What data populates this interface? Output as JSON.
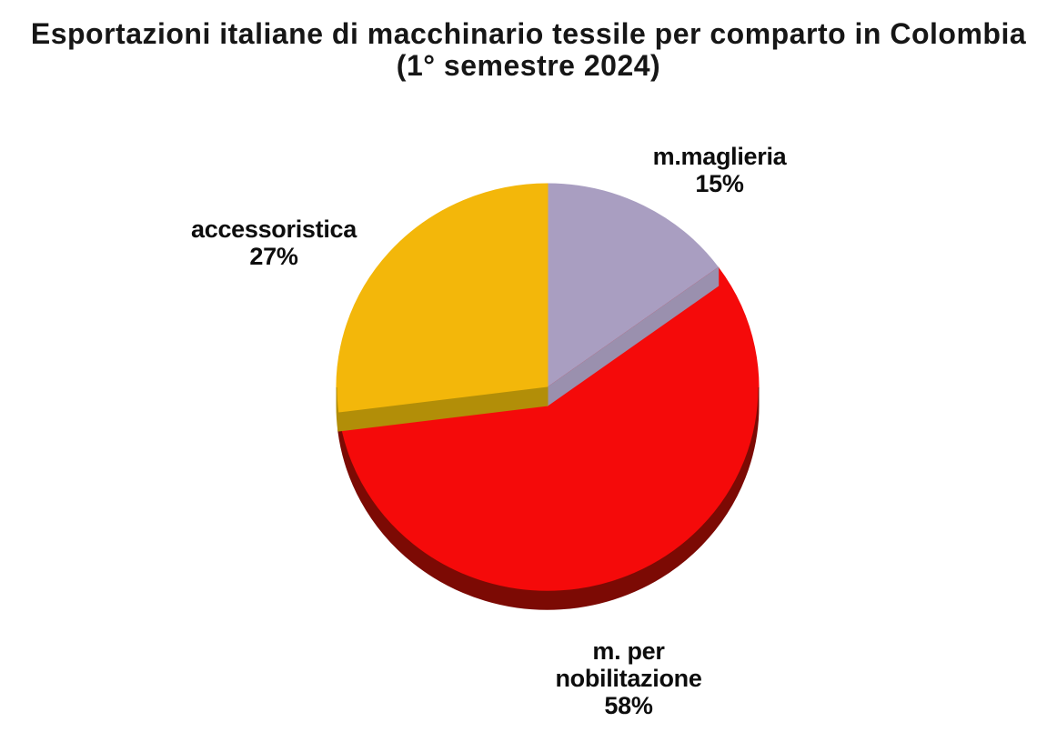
{
  "title": {
    "line1": "Esportazioni italiane di macchinario tessile per comparto in Colombia",
    "line2": "(1° semestre 2024)"
  },
  "chart_data": {
    "type": "pie",
    "style": "3d",
    "title": "Esportazioni italiane di macchinario tessile per comparto in Colombia (1° semestre 2024)",
    "unit": "%",
    "start_angle_deg": 0,
    "direction": "clockwise",
    "legend": "none",
    "slices": [
      {
        "label": "m.maglieria",
        "value": 15,
        "percent_text": "15%",
        "color_top": "#A99EC1",
        "color_side": "#9A90AE",
        "label_lines": [
          "m.maglieria",
          "15%"
        ]
      },
      {
        "label": "m. per nobilitazione",
        "value": 58,
        "percent_text": "58%",
        "color_top": "#F50A0A",
        "color_side": "#7C0A04",
        "label_lines": [
          "m. per",
          "nobilitazione",
          "58%"
        ]
      },
      {
        "label": "accessoristica",
        "value": 27,
        "percent_text": "27%",
        "color_top": "#F3B70A",
        "color_side": "#B28E08",
        "label_lines": [
          "accessoristica",
          "27%"
        ]
      }
    ]
  }
}
